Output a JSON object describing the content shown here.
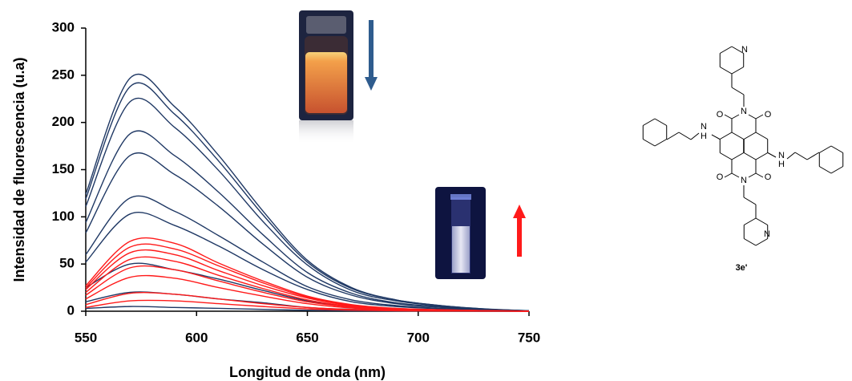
{
  "chart_data": {
    "type": "line",
    "xlabel": "Longitud de onda (nm)",
    "ylabel": "Intensidad de fluorescencia (u.a)",
    "x": [
      550,
      570,
      590,
      610,
      630,
      650,
      670,
      690,
      710,
      730,
      750
    ],
    "xlim": [
      550,
      750
    ],
    "xticks": [
      550,
      600,
      650,
      700,
      750
    ],
    "ylim": [
      0,
      300
    ],
    "yticks": [
      0,
      50,
      100,
      150,
      200,
      250,
      300
    ],
    "series": [
      {
        "color": "#1f3864",
        "values": [
          124,
          247,
          217,
          165,
          106,
          54,
          25,
          12,
          6,
          2.5,
          0.5
        ]
      },
      {
        "color": "#1f3864",
        "values": [
          119,
          238,
          209,
          159,
          102,
          52,
          24,
          12,
          6,
          2.4,
          0.5
        ]
      },
      {
        "color": "#1f3864",
        "values": [
          111,
          222,
          195,
          149,
          95,
          49,
          22,
          11,
          5.6,
          2.2,
          0.4
        ]
      },
      {
        "color": "#1f3864",
        "values": [
          94,
          188,
          165,
          126,
          81,
          41,
          19,
          9,
          4.7,
          1.9,
          0.4
        ]
      },
      {
        "color": "#1f3864",
        "values": [
          83,
          165,
          145,
          111,
          71,
          36,
          17,
          8,
          4.1,
          1.7,
          0.3
        ]
      },
      {
        "color": "#1f3864",
        "values": [
          60,
          120,
          106,
          80,
          52,
          26,
          12,
          6,
          3,
          1.2,
          0.2
        ]
      },
      {
        "color": "#1f3864",
        "values": [
          52,
          103,
          91,
          69,
          44,
          23,
          10,
          5,
          2.6,
          1,
          0.2
        ]
      },
      {
        "color": "#1f3864",
        "values": [
          25,
          50,
          44,
          34,
          22,
          11,
          5,
          2.5,
          1.3,
          0.5,
          0.1
        ]
      },
      {
        "color": "#1f3864",
        "values": [
          10,
          20,
          18,
          13,
          9,
          4,
          2,
          1,
          0.5,
          0.2,
          0
        ]
      },
      {
        "color": "#1f3864",
        "values": [
          3,
          5,
          4,
          3,
          2,
          1,
          0.5,
          0.3,
          0.1,
          0,
          0
        ]
      },
      {
        "color": "#ff1a1a",
        "values": [
          27,
          74,
          72,
          51,
          32,
          16,
          7,
          3,
          1.6,
          0.6,
          0.2
        ]
      },
      {
        "color": "#ff1a1a",
        "values": [
          25,
          68,
          66,
          48,
          30,
          15,
          6.5,
          2.9,
          1.4,
          0.6,
          0.1
        ]
      },
      {
        "color": "#ff1a1a",
        "values": [
          23,
          62,
          60,
          43,
          27,
          14,
          5.9,
          2.6,
          1.3,
          0.5,
          0.1
        ]
      },
      {
        "color": "#ff1a1a",
        "values": [
          20,
          55,
          53,
          38,
          24,
          12,
          5.2,
          2.3,
          1.2,
          0.5,
          0.1
        ]
      },
      {
        "color": "#ff1a1a",
        "values": [
          17,
          46,
          44,
          32,
          20,
          10,
          4.3,
          1.9,
          1,
          0.4,
          0.1
        ]
      },
      {
        "color": "#ff1a1a",
        "values": [
          13,
          36,
          35,
          25,
          16,
          8,
          3.4,
          1.5,
          0.8,
          0.3,
          0.1
        ]
      },
      {
        "color": "#ff1a1a",
        "values": [
          7,
          19,
          18,
          13,
          8,
          4,
          1.8,
          0.8,
          0.4,
          0.2,
          0
        ]
      },
      {
        "color": "#ff1a1a",
        "values": [
          4,
          11,
          11,
          8,
          5,
          2.5,
          1.1,
          0.5,
          0.2,
          0.1,
          0
        ]
      }
    ]
  },
  "structure": {
    "label": "3e'",
    "atoms": [
      "N",
      "N",
      "N",
      "N",
      "O",
      "O",
      "O",
      "O",
      "N",
      "H",
      "N",
      "H"
    ]
  }
}
